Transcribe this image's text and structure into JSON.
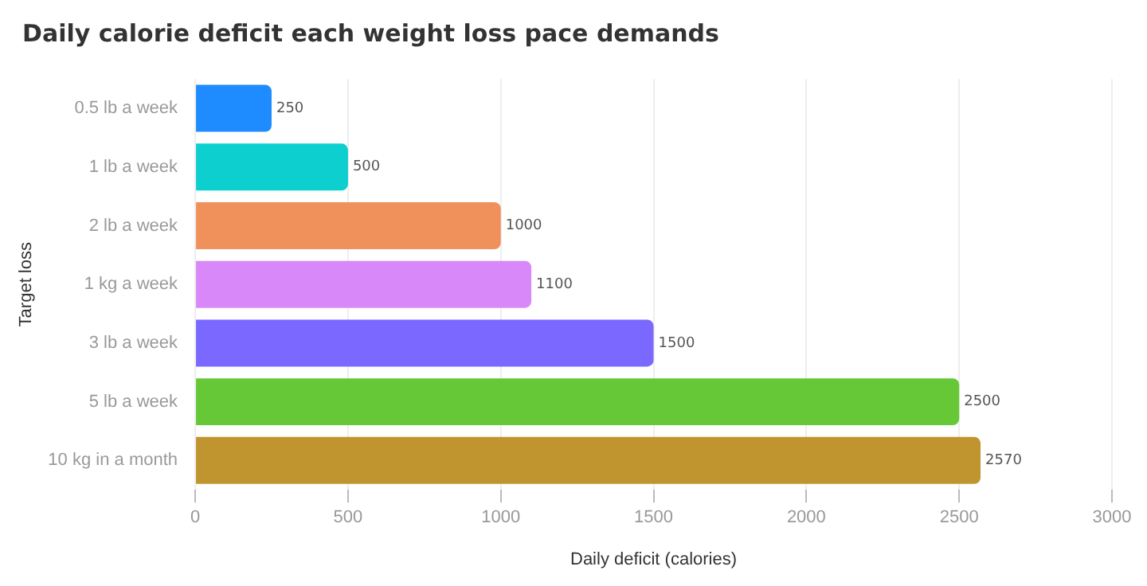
{
  "chart_data": {
    "type": "bar",
    "orientation": "horizontal",
    "title": "Daily calorie deficit each weight loss pace demands",
    "xlabel": "Daily deficit (calories)",
    "ylabel": "Target loss",
    "categories": [
      "0.5 lb a week",
      "1 lb a week",
      "2 lb a week",
      "1 kg a week",
      "3 lb a week",
      "5 lb a week",
      "10 kg in a month"
    ],
    "values": [
      250,
      500,
      1000,
      1100,
      1500,
      2500,
      2570
    ],
    "colors": [
      "#1e8cff",
      "#0dcfcf",
      "#f0905a",
      "#d888f8",
      "#7b68ff",
      "#66c837",
      "#c0952f"
    ],
    "xlim": [
      0,
      3000
    ],
    "xticks": [
      0,
      500,
      1000,
      1500,
      2000,
      2500,
      3000
    ],
    "grid": "x",
    "data_labels": true,
    "legend": false
  }
}
